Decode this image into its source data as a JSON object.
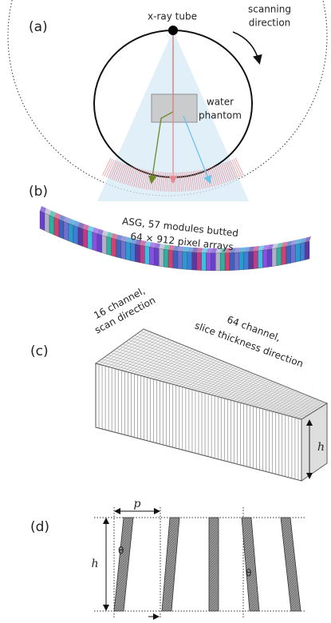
{
  "panel_a": {
    "label": "(a)",
    "source": "x-ray tube",
    "scan_label": [
      "scanning",
      "direction"
    ],
    "phantom_label": [
      "water",
      "phantom"
    ]
  },
  "panel_b": {
    "label": "(b)",
    "caption": [
      "ASG, 57 modules butted",
      "64 × 912 pixel arrays"
    ]
  },
  "panel_c": {
    "label": "(c)",
    "scan_channels": [
      "16 channel,",
      "scan direction"
    ],
    "slice_channels": [
      "64 channel,",
      "slice thickness direction"
    ],
    "height": "h"
  },
  "panel_d": {
    "label": "(d)",
    "pitch": "p",
    "height": "h",
    "angle": [
      "θ",
      "θ"
    ]
  }
}
